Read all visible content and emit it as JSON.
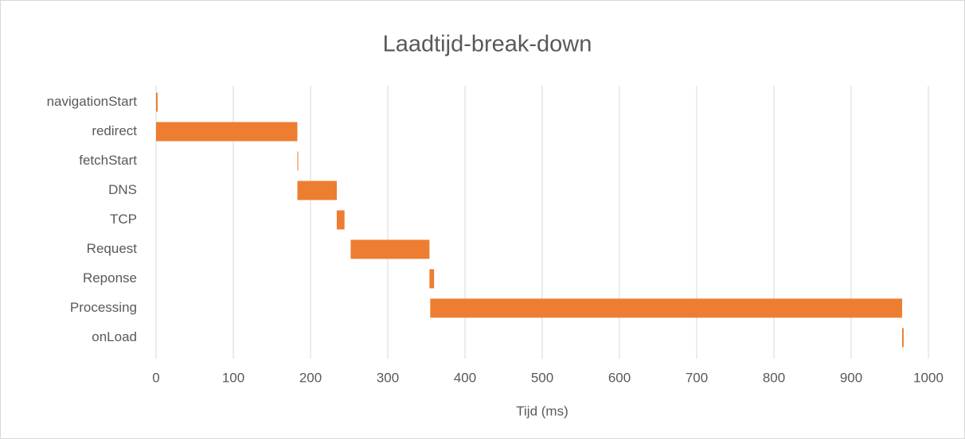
{
  "chart_data": {
    "type": "floating-bar",
    "title": "Laadtijd-break-down",
    "x_label": "Tijd (ms)",
    "categories": [
      "navigationStart",
      "redirect",
      "fetchStart",
      "DNS",
      "TCP",
      "Request",
      "Reponse",
      "Processing",
      "onLoad"
    ],
    "starts": [
      0,
      0,
      183,
      183,
      234,
      252,
      354,
      355,
      966
    ],
    "values": [
      2,
      183,
      1,
      51,
      10,
      102,
      6,
      611,
      2
    ],
    "color": "#ed7d31",
    "xlim": [
      0,
      1000
    ],
    "xticks": [
      0,
      100,
      200,
      300,
      400,
      500,
      600,
      700,
      800,
      900,
      1000
    ],
    "grid": true
  }
}
